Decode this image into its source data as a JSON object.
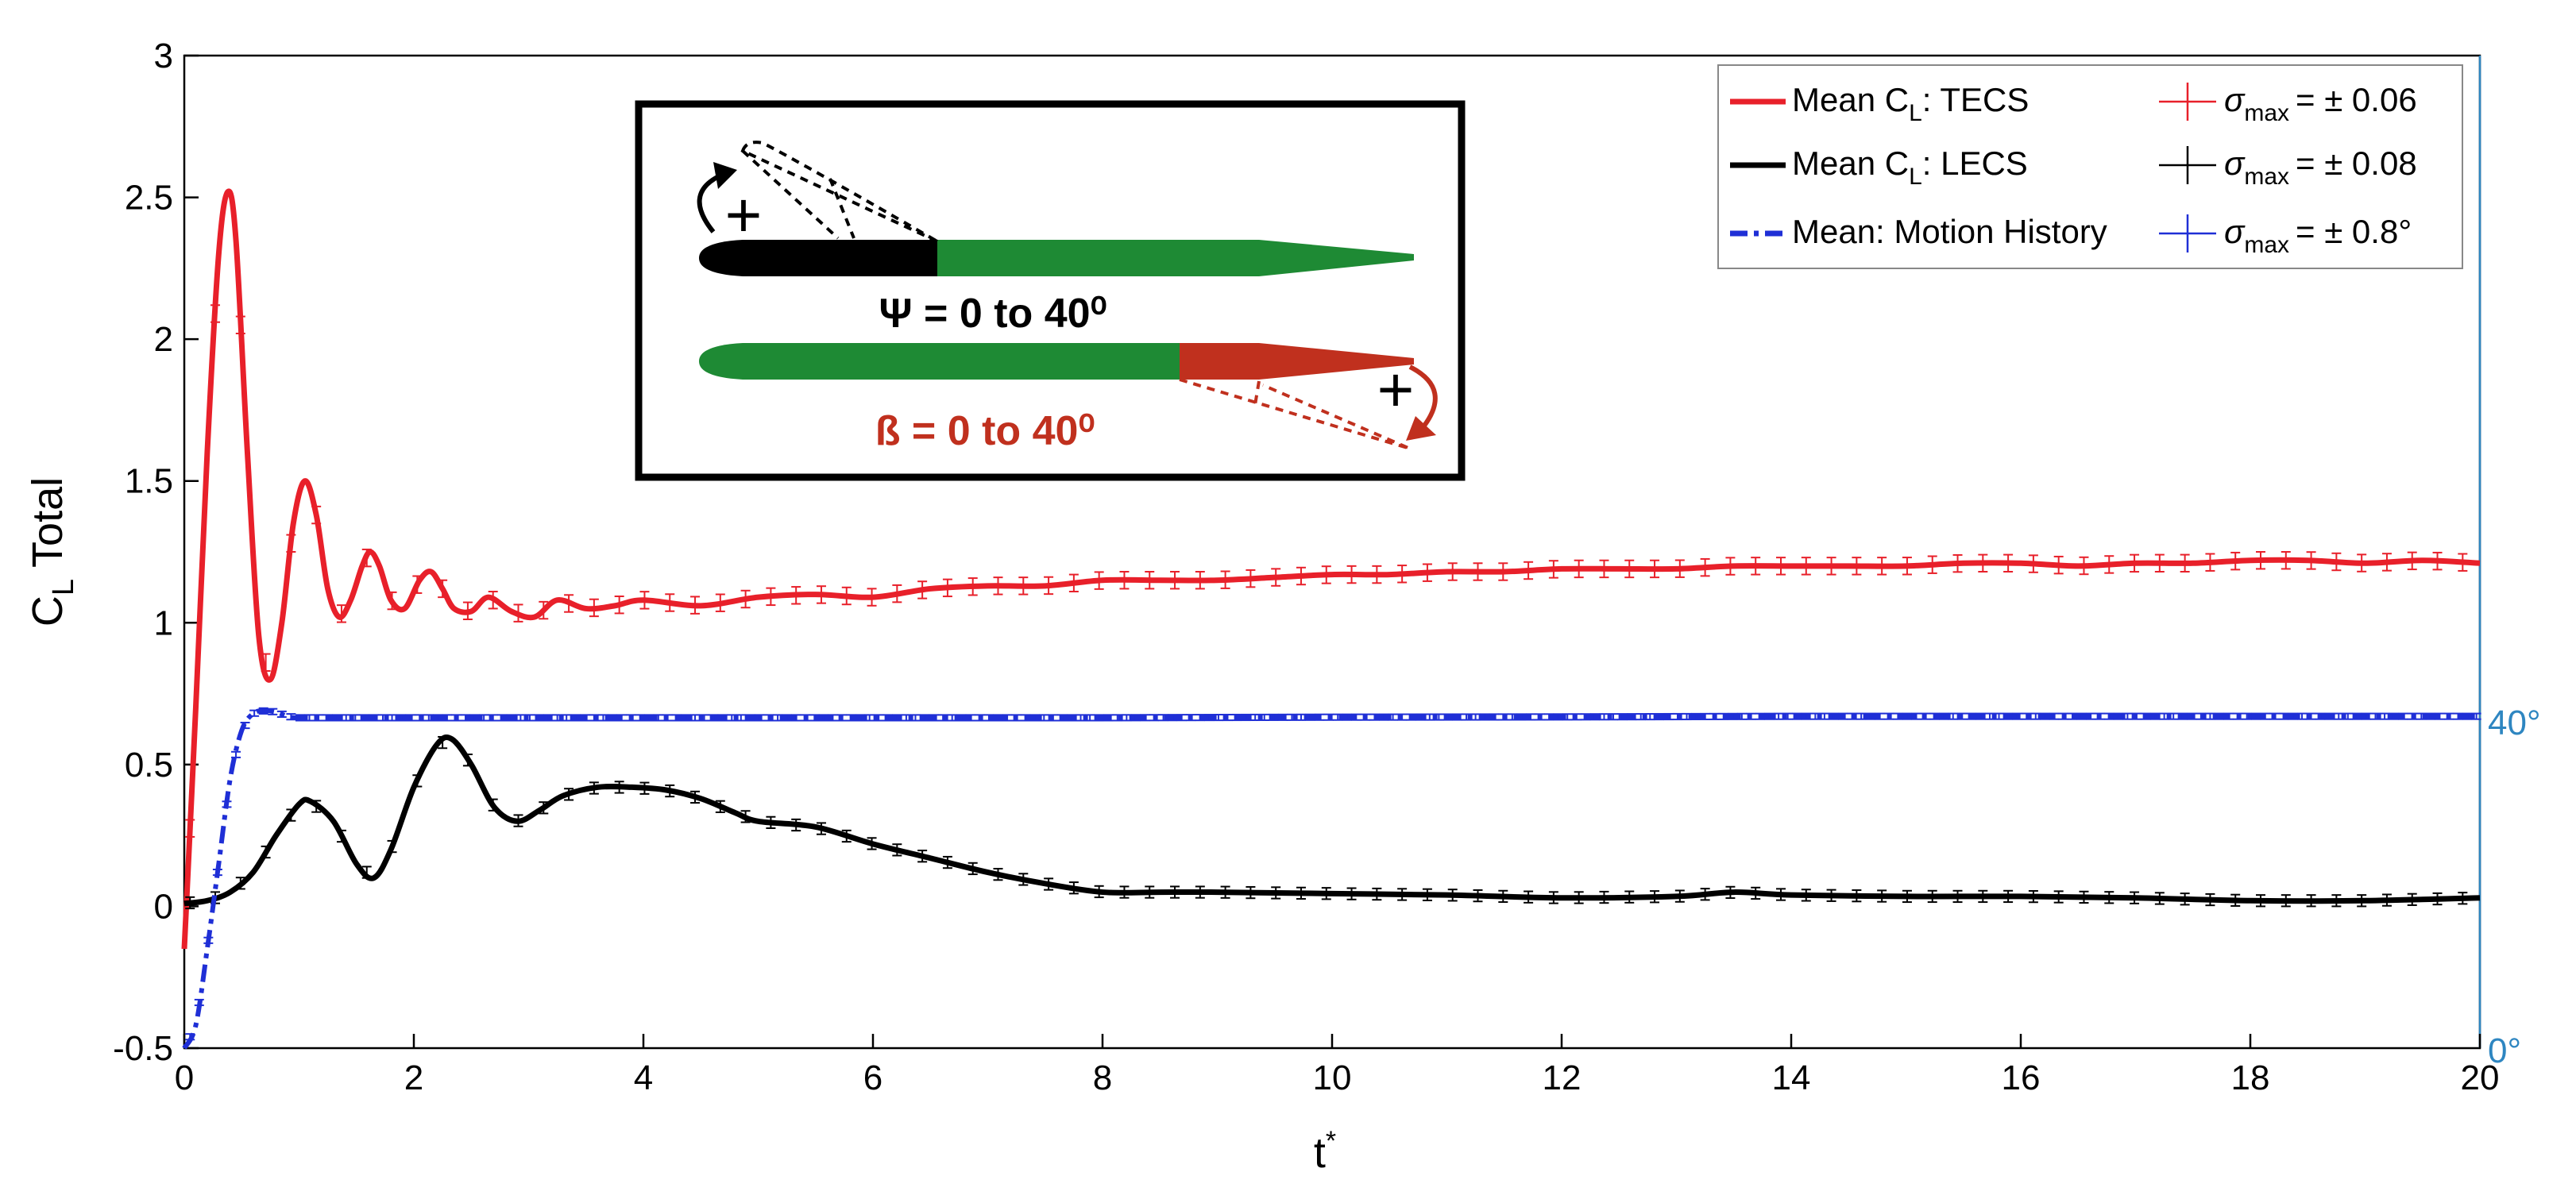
{
  "chart_data": {
    "type": "line",
    "xlabel": "t*",
    "ylabel": "C_L Total",
    "xlim": [
      0,
      20
    ],
    "ylim": [
      -0.5,
      3
    ],
    "xticks": [
      0,
      2,
      4,
      6,
      8,
      10,
      12,
      14,
      16,
      18,
      20
    ],
    "yticks": [
      -0.5,
      0,
      0.5,
      1,
      1.5,
      2,
      2.5,
      3
    ],
    "xtick_labels": [
      "0",
      "2",
      "4",
      "6",
      "8",
      "10",
      "12",
      "14",
      "16",
      "18",
      "20"
    ],
    "ytick_labels": [
      "-0.5",
      "0",
      "0.5",
      "1",
      "1.5",
      "2",
      "2.5",
      "3"
    ],
    "right_axis": {
      "label_top": "40°",
      "label_bottom": "0°",
      "top_value_in_left_units": 0.67,
      "bottom_value_in_left_units": -0.5,
      "color": "#2E86C1"
    },
    "series": [
      {
        "name": "Mean C_L: TECS",
        "color": "#E8202A",
        "style": "solid",
        "sigma_label": "σmax = ± 0.06",
        "x": [
          0,
          0.1,
          0.2,
          0.3,
          0.38,
          0.45,
          0.55,
          0.65,
          0.75,
          0.85,
          0.95,
          1.05,
          1.15,
          1.25,
          1.35,
          1.45,
          1.55,
          1.62,
          1.7,
          1.8,
          1.92,
          2.05,
          2.15,
          2.25,
          2.35,
          2.5,
          2.65,
          2.85,
          3.05,
          3.25,
          3.5,
          3.75,
          4,
          4.5,
          5,
          5.5,
          6,
          6.5,
          7,
          7.5,
          8,
          8.5,
          9,
          9.5,
          10,
          10.5,
          11,
          11.5,
          12,
          12.5,
          13,
          13.5,
          14,
          14.5,
          15,
          15.5,
          16,
          16.5,
          17,
          17.5,
          18,
          18.5,
          19,
          19.5,
          20
        ],
        "y": [
          -0.15,
          0.7,
          1.6,
          2.3,
          2.52,
          2.35,
          1.6,
          0.95,
          0.8,
          1.0,
          1.35,
          1.5,
          1.38,
          1.12,
          1.02,
          1.08,
          1.2,
          1.25,
          1.2,
          1.08,
          1.05,
          1.15,
          1.18,
          1.12,
          1.05,
          1.04,
          1.09,
          1.04,
          1.02,
          1.08,
          1.05,
          1.06,
          1.08,
          1.06,
          1.09,
          1.1,
          1.09,
          1.12,
          1.13,
          1.13,
          1.15,
          1.15,
          1.15,
          1.16,
          1.17,
          1.17,
          1.18,
          1.18,
          1.19,
          1.19,
          1.19,
          1.2,
          1.2,
          1.2,
          1.2,
          1.21,
          1.21,
          1.2,
          1.21,
          1.21,
          1.22,
          1.22,
          1.21,
          1.22,
          1.21
        ]
      },
      {
        "name": "Mean C_L: LECS",
        "color": "#000000",
        "style": "solid",
        "sigma_label": "σmax = ± 0.08",
        "x": [
          0,
          0.2,
          0.4,
          0.6,
          0.8,
          1.0,
          1.1,
          1.3,
          1.5,
          1.65,
          1.8,
          2.0,
          2.2,
          2.33,
          2.5,
          2.7,
          2.9,
          3.1,
          3.3,
          3.6,
          3.9,
          4.2,
          4.5,
          4.8,
          5.0,
          5.5,
          6.0,
          6.5,
          7.0,
          7.5,
          8.0,
          8.5,
          9,
          10,
          11,
          12,
          13,
          13.5,
          14,
          15,
          16,
          17,
          18,
          19,
          20
        ],
        "y": [
          0.01,
          0.02,
          0.05,
          0.12,
          0.25,
          0.36,
          0.37,
          0.3,
          0.15,
          0.1,
          0.2,
          0.42,
          0.57,
          0.59,
          0.5,
          0.35,
          0.3,
          0.34,
          0.39,
          0.42,
          0.42,
          0.41,
          0.38,
          0.33,
          0.3,
          0.28,
          0.22,
          0.17,
          0.12,
          0.08,
          0.05,
          0.05,
          0.05,
          0.045,
          0.04,
          0.03,
          0.035,
          0.05,
          0.04,
          0.035,
          0.035,
          0.03,
          0.02,
          0.02,
          0.03
        ]
      },
      {
        "name": "Mean: Motion History",
        "color": "#1F2FD6",
        "style": "dashdot",
        "sigma_label": "σmax = ± 0.8°",
        "x": [
          0,
          0.1,
          0.2,
          0.3,
          0.4,
          0.5,
          0.6,
          0.7,
          0.8,
          0.9,
          1.0,
          1.5,
          2,
          4,
          6,
          8,
          10,
          12,
          14,
          16,
          18,
          20
        ],
        "y": [
          -0.5,
          -0.42,
          -0.15,
          0.15,
          0.45,
          0.62,
          0.68,
          0.69,
          0.685,
          0.67,
          0.665,
          0.665,
          0.665,
          0.665,
          0.665,
          0.665,
          0.667,
          0.668,
          0.67,
          0.67,
          0.67,
          0.67
        ]
      }
    ],
    "legend_position": "top-right"
  },
  "legend": {
    "items": [
      {
        "line_label": "Mean C",
        "sub": "L",
        "suffix": ": TECS",
        "sigma_value": "= ± 0.06",
        "color": "#E8202A"
      },
      {
        "line_label": "Mean C",
        "sub": "L",
        "suffix": ": LECS",
        "sigma_value": "= ± 0.08",
        "color": "#000000"
      },
      {
        "line_label": "Mean: Motion History",
        "sub": "",
        "suffix": "",
        "sigma_value": "= ± 0.8°",
        "color": "#1F2FD6"
      }
    ],
    "sigma_symbol": "σ",
    "sigma_sub": "max"
  },
  "inset": {
    "psi_label": "Ψ =  0 to 40⁰",
    "beta_label": "ß =  0 to 40⁰",
    "plus": "+",
    "colors": {
      "black_part": "#000000",
      "green_part": "#1E8A34",
      "red_part": "#C0301E"
    }
  }
}
